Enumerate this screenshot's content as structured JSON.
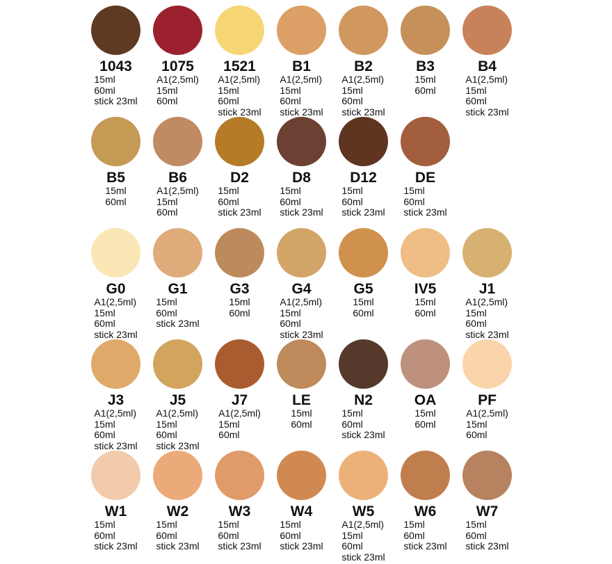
{
  "page": {
    "background": "#ffffff",
    "text_color": "#101010",
    "description_label": "Foundation shade color chart"
  },
  "chart_data": {
    "type": "table",
    "title": "",
    "columns": [
      "shade_code",
      "color_hex",
      "available_sizes"
    ],
    "layout": {
      "grid_rows": [
        7,
        6,
        7,
        7,
        7
      ],
      "columns_per_row": 7
    },
    "rows": [
      {
        "shade_code": "1043",
        "color_hex": "#5e3a23",
        "available_sizes": [
          "15ml",
          "60ml",
          "stick 23ml"
        ]
      },
      {
        "shade_code": "1075",
        "color_hex": "#9c212e",
        "available_sizes": [
          "A1(2,5ml)",
          "15ml",
          "60ml"
        ]
      },
      {
        "shade_code": "1521",
        "color_hex": "#f6d674",
        "available_sizes": [
          "A1(2,5ml)",
          "15ml",
          "60ml",
          "stick 23ml"
        ]
      },
      {
        "shade_code": "B1",
        "color_hex": "#dc9f66",
        "available_sizes": [
          "A1(2,5ml)",
          "15ml",
          "60ml",
          "stick 23ml"
        ]
      },
      {
        "shade_code": "B2",
        "color_hex": "#d0985f",
        "available_sizes": [
          "A1(2,5ml)",
          "15ml",
          "60ml",
          "stick 23ml"
        ]
      },
      {
        "shade_code": "B3",
        "color_hex": "#c6905a",
        "available_sizes": [
          "15ml",
          "60ml"
        ]
      },
      {
        "shade_code": "B4",
        "color_hex": "#c8825a",
        "available_sizes": [
          "A1(2,5ml)",
          "15ml",
          "60ml",
          "stick 23ml"
        ]
      },
      {
        "shade_code": "B5",
        "color_hex": "#c49a55",
        "available_sizes": [
          "15ml",
          "60ml"
        ]
      },
      {
        "shade_code": "B6",
        "color_hex": "#c08a63",
        "available_sizes": [
          "A1(2,5ml)",
          "15ml",
          "60ml"
        ]
      },
      {
        "shade_code": "D2",
        "color_hex": "#b57b26",
        "available_sizes": [
          "15ml",
          "60ml",
          "stick 23ml"
        ]
      },
      {
        "shade_code": "D8",
        "color_hex": "#6c4032",
        "available_sizes": [
          "15ml",
          "60ml",
          "stick 23ml"
        ]
      },
      {
        "shade_code": "D12",
        "color_hex": "#5f3421",
        "available_sizes": [
          "15ml",
          "60ml",
          "stick 23ml"
        ]
      },
      {
        "shade_code": "DE",
        "color_hex": "#a25e3d",
        "available_sizes": [
          "15ml",
          "60ml",
          "stick 23ml"
        ]
      },
      {
        "shade_code": "G0",
        "color_hex": "#fbe7b6",
        "available_sizes": [
          "A1(2,5ml)",
          "15ml",
          "60ml",
          "stick 23ml"
        ]
      },
      {
        "shade_code": "G1",
        "color_hex": "#dfab7b",
        "available_sizes": [
          "15ml",
          "60ml",
          "stick 23ml"
        ]
      },
      {
        "shade_code": "G3",
        "color_hex": "#bc8a5c",
        "available_sizes": [
          "15ml",
          "60ml"
        ]
      },
      {
        "shade_code": "G4",
        "color_hex": "#d3a468",
        "available_sizes": [
          "A1(2,5ml)",
          "15ml",
          "60ml",
          "stick 23ml"
        ]
      },
      {
        "shade_code": "G5",
        "color_hex": "#d0914e",
        "available_sizes": [
          "15ml",
          "60ml"
        ]
      },
      {
        "shade_code": "IV5",
        "color_hex": "#efbd85",
        "available_sizes": [
          "15ml",
          "60ml"
        ]
      },
      {
        "shade_code": "J1",
        "color_hex": "#d7b171",
        "available_sizes": [
          "A1(2,5ml)",
          "15ml",
          "60ml",
          "stick 23ml"
        ]
      },
      {
        "shade_code": "J3",
        "color_hex": "#dfa969",
        "available_sizes": [
          "A1(2,5ml)",
          "15ml",
          "60ml",
          "stick 23ml"
        ]
      },
      {
        "shade_code": "J5",
        "color_hex": "#d2a45e",
        "available_sizes": [
          "A1(2,5ml)",
          "15ml",
          "60ml",
          "stick 23ml"
        ]
      },
      {
        "shade_code": "J7",
        "color_hex": "#a95c30",
        "available_sizes": [
          "A1(2,5ml)",
          "15ml",
          "60ml"
        ]
      },
      {
        "shade_code": "LE",
        "color_hex": "#bf8a5c",
        "available_sizes": [
          "15ml",
          "60ml"
        ]
      },
      {
        "shade_code": "N2",
        "color_hex": "#55392b",
        "available_sizes": [
          "15ml",
          "60ml",
          "stick 23ml"
        ]
      },
      {
        "shade_code": "OA",
        "color_hex": "#bd917d",
        "available_sizes": [
          "15ml",
          "60ml"
        ]
      },
      {
        "shade_code": "PF",
        "color_hex": "#fad5ab",
        "available_sizes": [
          "A1(2,5ml)",
          "15ml",
          "60ml"
        ]
      },
      {
        "shade_code": "W1",
        "color_hex": "#f1cbac",
        "available_sizes": [
          "15ml",
          "60ml",
          "stick 23ml"
        ]
      },
      {
        "shade_code": "W2",
        "color_hex": "#ecaa7a",
        "available_sizes": [
          "15ml",
          "60ml",
          "stick 23ml"
        ]
      },
      {
        "shade_code": "W3",
        "color_hex": "#e09b6a",
        "available_sizes": [
          "15ml",
          "60ml",
          "stick 23ml"
        ]
      },
      {
        "shade_code": "W4",
        "color_hex": "#d08950",
        "available_sizes": [
          "15ml",
          "60ml",
          "stick 23ml"
        ]
      },
      {
        "shade_code": "W5",
        "color_hex": "#ecb178",
        "available_sizes": [
          "A1(2,5ml)",
          "15ml",
          "60ml",
          "stick 23ml"
        ]
      },
      {
        "shade_code": "W6",
        "color_hex": "#c07e4f",
        "available_sizes": [
          "15ml",
          "60ml",
          "stick 23ml"
        ]
      },
      {
        "shade_code": "W7",
        "color_hex": "#b68260",
        "available_sizes": [
          "15ml",
          "60ml",
          "stick 23ml"
        ]
      }
    ]
  }
}
